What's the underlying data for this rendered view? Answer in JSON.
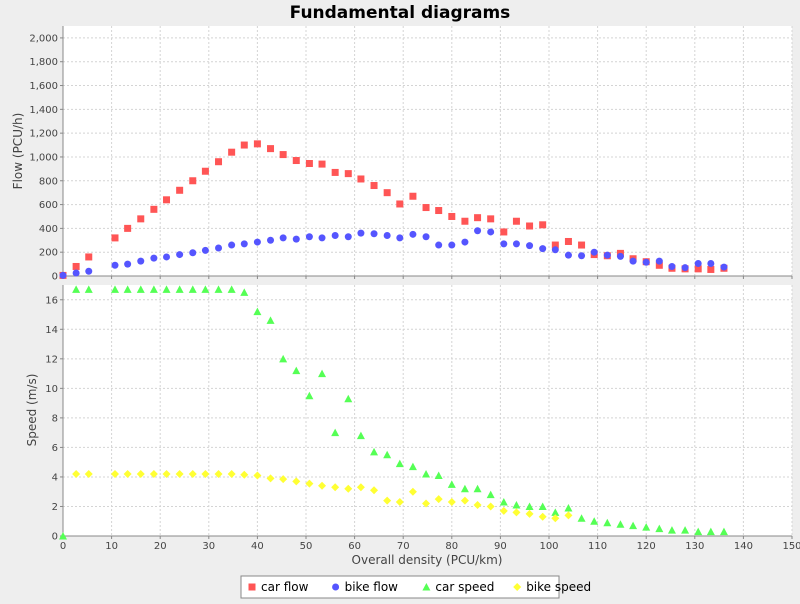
{
  "chart_data": {
    "type": "scatter",
    "title": "Fundamental diagrams",
    "xlabel": "Overall density (PCU/km)",
    "xlim": [
      0,
      150
    ],
    "x_ticks": [
      0,
      10,
      20,
      30,
      40,
      50,
      60,
      70,
      80,
      90,
      100,
      110,
      120,
      130,
      140,
      150
    ],
    "grid": true,
    "legend_position": "bottom-center",
    "subplots": [
      {
        "ylabel": "Flow (PCU/h)",
        "ylim": [
          0,
          2100
        ],
        "y_ticks": [
          0,
          200,
          400,
          600,
          800,
          1000,
          1200,
          1400,
          1600,
          1800,
          2000
        ],
        "y_tick_labels": [
          "0",
          "200",
          "400",
          "600",
          "800",
          "1,000",
          "1,200",
          "1,400",
          "1,600",
          "1,800",
          "2,000"
        ]
      },
      {
        "ylabel": "Speed (m/s)",
        "ylim": [
          0,
          17
        ],
        "y_ticks": [
          0,
          2,
          4,
          6,
          8,
          10,
          12,
          14,
          16
        ],
        "y_tick_labels": [
          "0",
          "2",
          "4",
          "6",
          "8",
          "10",
          "12",
          "14",
          "16"
        ]
      }
    ],
    "series": [
      {
        "name": "car flow",
        "subplot": 0,
        "marker": "square",
        "color": "#ff5555",
        "points": [
          [
            0,
            5
          ],
          [
            2.7,
            80
          ],
          [
            5.3,
            160
          ],
          [
            10.7,
            320
          ],
          [
            13.3,
            400
          ],
          [
            16,
            480
          ],
          [
            18.7,
            560
          ],
          [
            21.3,
            640
          ],
          [
            24,
            720
          ],
          [
            26.7,
            800
          ],
          [
            29.3,
            880
          ],
          [
            32,
            960
          ],
          [
            34.7,
            1040
          ],
          [
            37.3,
            1100
          ],
          [
            40,
            1110
          ],
          [
            42.7,
            1070
          ],
          [
            45.3,
            1020
          ],
          [
            48,
            970
          ],
          [
            50.7,
            945
          ],
          [
            53.3,
            940
          ],
          [
            56,
            870
          ],
          [
            58.7,
            860
          ],
          [
            61.3,
            815
          ],
          [
            64,
            760
          ],
          [
            66.7,
            700
          ],
          [
            69.3,
            605
          ],
          [
            72,
            670
          ],
          [
            74.7,
            575
          ],
          [
            77.3,
            550
          ],
          [
            80,
            500
          ],
          [
            82.7,
            460
          ],
          [
            85.3,
            490
          ],
          [
            88,
            480
          ],
          [
            90.7,
            370
          ],
          [
            93.3,
            460
          ],
          [
            96,
            420
          ],
          [
            98.7,
            430
          ],
          [
            101.3,
            260
          ],
          [
            104,
            290
          ],
          [
            106.7,
            260
          ],
          [
            109.3,
            180
          ],
          [
            112,
            170
          ],
          [
            114.7,
            190
          ],
          [
            117.3,
            145
          ],
          [
            120,
            120
          ],
          [
            122.7,
            90
          ],
          [
            125.3,
            65
          ],
          [
            128,
            60
          ],
          [
            130.7,
            60
          ],
          [
            133.3,
            55
          ],
          [
            136,
            65
          ]
        ]
      },
      {
        "name": "bike flow",
        "subplot": 0,
        "marker": "circle",
        "color": "#5555ff",
        "points": [
          [
            0,
            5
          ],
          [
            2.7,
            25
          ],
          [
            5.3,
            40
          ],
          [
            10.7,
            90
          ],
          [
            13.3,
            100
          ],
          [
            16,
            125
          ],
          [
            18.7,
            150
          ],
          [
            21.3,
            160
          ],
          [
            24,
            180
          ],
          [
            26.7,
            195
          ],
          [
            29.3,
            215
          ],
          [
            32,
            235
          ],
          [
            34.7,
            260
          ],
          [
            37.3,
            270
          ],
          [
            40,
            285
          ],
          [
            42.7,
            300
          ],
          [
            45.3,
            320
          ],
          [
            48,
            310
          ],
          [
            50.7,
            330
          ],
          [
            53.3,
            320
          ],
          [
            56,
            340
          ],
          [
            58.7,
            330
          ],
          [
            61.3,
            360
          ],
          [
            64,
            355
          ],
          [
            66.7,
            340
          ],
          [
            69.3,
            320
          ],
          [
            72,
            350
          ],
          [
            74.7,
            330
          ],
          [
            77.3,
            260
          ],
          [
            80,
            260
          ],
          [
            82.7,
            285
          ],
          [
            85.3,
            380
          ],
          [
            88,
            370
          ],
          [
            90.7,
            270
          ],
          [
            93.3,
            270
          ],
          [
            96,
            255
          ],
          [
            98.7,
            230
          ],
          [
            101.3,
            220
          ],
          [
            104,
            175
          ],
          [
            106.7,
            170
          ],
          [
            109.3,
            200
          ],
          [
            112,
            175
          ],
          [
            114.7,
            165
          ],
          [
            117.3,
            125
          ],
          [
            120,
            115
          ],
          [
            122.7,
            125
          ],
          [
            125.3,
            80
          ],
          [
            128,
            70
          ],
          [
            130.7,
            105
          ],
          [
            133.3,
            105
          ],
          [
            136,
            75
          ]
        ]
      },
      {
        "name": "car speed",
        "subplot": 1,
        "marker": "triangle",
        "color": "#55ff55",
        "points": [
          [
            0,
            0
          ],
          [
            2.7,
            16.7
          ],
          [
            5.3,
            16.7
          ],
          [
            10.7,
            16.7
          ],
          [
            13.3,
            16.7
          ],
          [
            16,
            16.7
          ],
          [
            18.7,
            16.7
          ],
          [
            21.3,
            16.7
          ],
          [
            24,
            16.7
          ],
          [
            26.7,
            16.7
          ],
          [
            29.3,
            16.7
          ],
          [
            32,
            16.7
          ],
          [
            34.7,
            16.7
          ],
          [
            37.3,
            16.5
          ],
          [
            40,
            15.2
          ],
          [
            42.7,
            14.6
          ],
          [
            45.3,
            12
          ],
          [
            48,
            11.2
          ],
          [
            50.7,
            9.5
          ],
          [
            53.3,
            11
          ],
          [
            56,
            7
          ],
          [
            58.7,
            9.3
          ],
          [
            61.3,
            6.8
          ],
          [
            64,
            5.7
          ],
          [
            66.7,
            5.5
          ],
          [
            69.3,
            4.9
          ],
          [
            72,
            4.7
          ],
          [
            74.7,
            4.2
          ],
          [
            77.3,
            4.1
          ],
          [
            80,
            3.5
          ],
          [
            82.7,
            3.2
          ],
          [
            85.3,
            3.2
          ],
          [
            88,
            2.8
          ],
          [
            90.7,
            2.3
          ],
          [
            93.3,
            2.1
          ],
          [
            96,
            2.0
          ],
          [
            98.7,
            2.0
          ],
          [
            101.3,
            1.6
          ],
          [
            104,
            1.9
          ],
          [
            106.7,
            1.2
          ],
          [
            109.3,
            1.0
          ],
          [
            112,
            0.9
          ],
          [
            114.7,
            0.8
          ],
          [
            117.3,
            0.7
          ],
          [
            120,
            0.6
          ],
          [
            122.7,
            0.5
          ],
          [
            125.3,
            0.4
          ],
          [
            128,
            0.4
          ],
          [
            130.7,
            0.3
          ],
          [
            133.3,
            0.3
          ],
          [
            136,
            0.3
          ]
        ]
      },
      {
        "name": "bike speed",
        "subplot": 1,
        "marker": "diamond",
        "color": "#ffff33",
        "points": [
          [
            2.7,
            4.2
          ],
          [
            5.3,
            4.2
          ],
          [
            10.7,
            4.2
          ],
          [
            13.3,
            4.2
          ],
          [
            16,
            4.2
          ],
          [
            18.7,
            4.2
          ],
          [
            21.3,
            4.2
          ],
          [
            24,
            4.2
          ],
          [
            26.7,
            4.2
          ],
          [
            29.3,
            4.2
          ],
          [
            32,
            4.2
          ],
          [
            34.7,
            4.2
          ],
          [
            37.3,
            4.15
          ],
          [
            40,
            4.1
          ],
          [
            42.7,
            3.9
          ],
          [
            45.3,
            3.85
          ],
          [
            48,
            3.7
          ],
          [
            50.7,
            3.55
          ],
          [
            53.3,
            3.4
          ],
          [
            56,
            3.3
          ],
          [
            58.7,
            3.2
          ],
          [
            61.3,
            3.3
          ],
          [
            64,
            3.1
          ],
          [
            66.7,
            2.4
          ],
          [
            69.3,
            2.3
          ],
          [
            72,
            3.0
          ],
          [
            74.7,
            2.2
          ],
          [
            77.3,
            2.5
          ],
          [
            80,
            2.3
          ],
          [
            82.7,
            2.4
          ],
          [
            85.3,
            2.1
          ],
          [
            88,
            2.0
          ],
          [
            90.7,
            1.7
          ],
          [
            93.3,
            1.6
          ],
          [
            96,
            1.5
          ],
          [
            98.7,
            1.3
          ],
          [
            101.3,
            1.2
          ],
          [
            104,
            1.4
          ]
        ]
      }
    ]
  }
}
